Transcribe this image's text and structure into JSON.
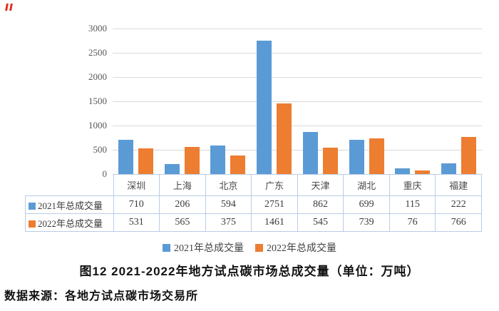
{
  "page": {
    "background": "#FFFFFF"
  },
  "corner_mark": {
    "color": "#E0301E"
  },
  "chart_data": {
    "type": "bar",
    "title": "图12 2021-2022年地方试点碳市场总成交量（单位：万吨）",
    "source_note": "数据来源：各地方试点碳市场交易所",
    "categories": [
      "深圳",
      "上海",
      "北京",
      "广东",
      "天津",
      "湖北",
      "重庆",
      "福建"
    ],
    "series": [
      {
        "name": "2021年总成交量",
        "color": "#5B9BD5",
        "values": [
          710,
          206,
          594,
          2751,
          862,
          699,
          115,
          222
        ]
      },
      {
        "name": "2022年总成交量",
        "color": "#ED7D31",
        "values": [
          531,
          565,
          375,
          1461,
          545,
          739,
          76,
          766
        ]
      }
    ],
    "ylim": [
      0,
      3000
    ],
    "ytick_interval": 500,
    "yticks": [
      "3000",
      "2500",
      "2000",
      "1500",
      "1000",
      "500",
      "0"
    ],
    "grid": true,
    "legend_position": "bottom",
    "gridline_color": "#D9D9D9",
    "axis_line_color": "#C6C6C6",
    "table_border_color": "#B9CDE5",
    "text_color": "#404040"
  }
}
